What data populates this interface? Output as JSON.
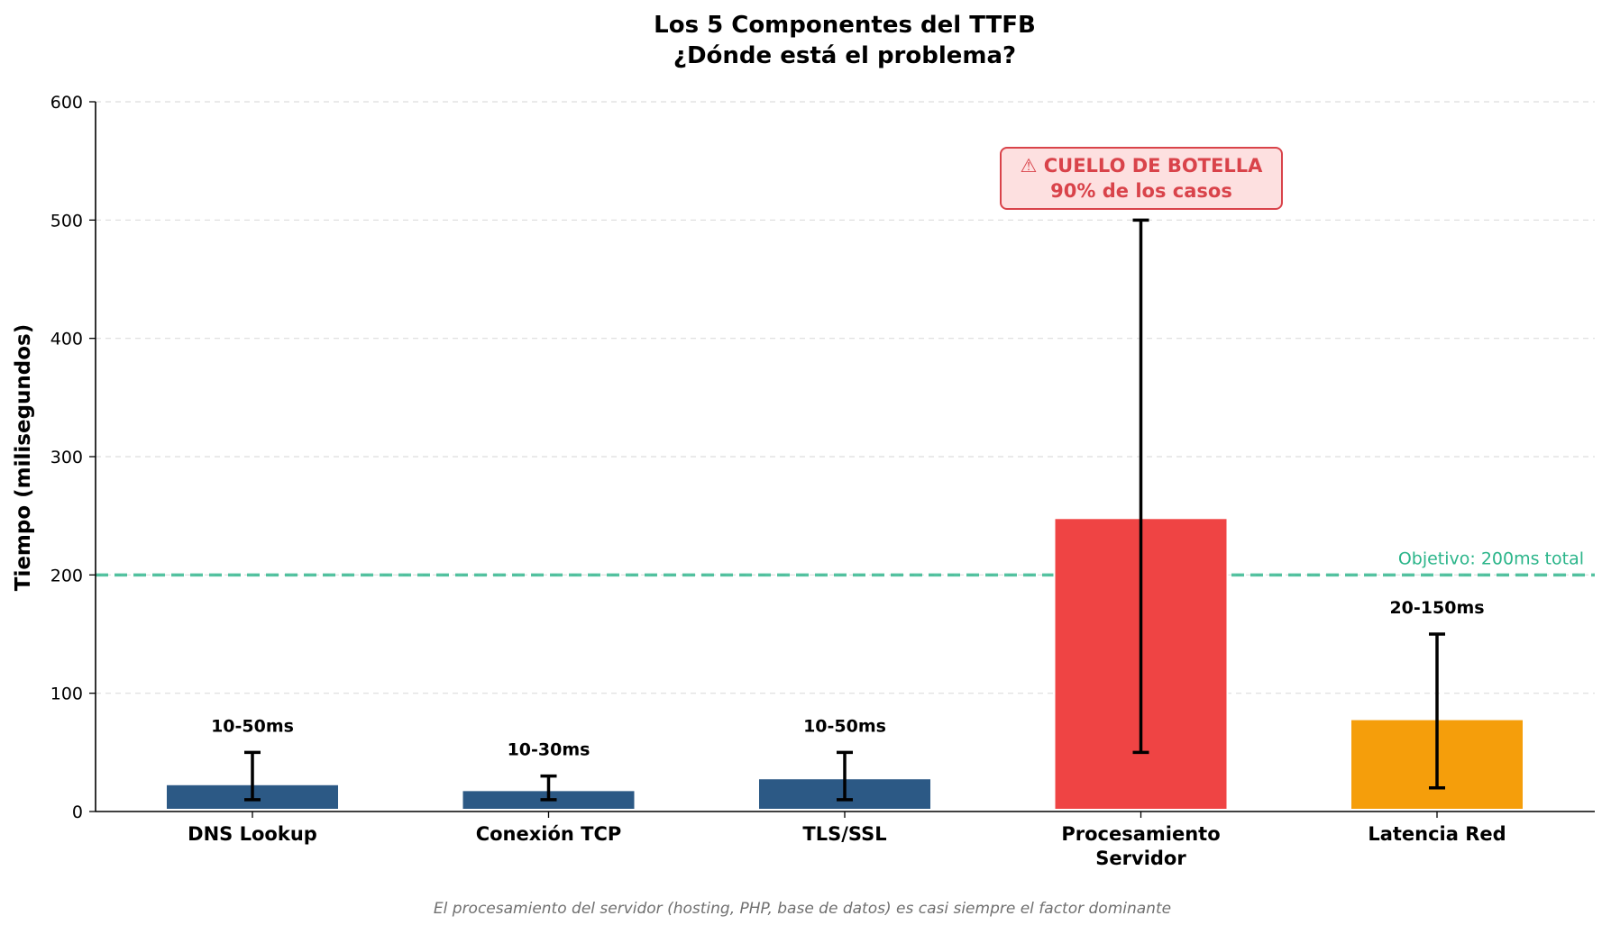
{
  "chart_data": {
    "type": "bar",
    "title_line1": "Los 5 Componentes del TTFB",
    "title_line2": "¿Dónde está el problema?",
    "ylabel": "Tiempo (milisegundos)",
    "xlabel": "",
    "ylim": [
      0,
      600
    ],
    "yticks": [
      0,
      100,
      200,
      300,
      400,
      500,
      600
    ],
    "grid": true,
    "categories": [
      [
        "DNS Lookup"
      ],
      [
        "Conexión TCP"
      ],
      [
        "TLS/SSL"
      ],
      [
        "Procesamiento",
        "Servidor"
      ],
      [
        "Latencia Red"
      ]
    ],
    "values": [
      23,
      18,
      28,
      248,
      78
    ],
    "error_low": [
      10,
      10,
      10,
      50,
      20
    ],
    "error_high": [
      50,
      30,
      50,
      500,
      150
    ],
    "data_labels": [
      "10-50ms",
      "10-30ms",
      "10-50ms",
      "",
      "20-150ms"
    ],
    "colors": [
      "#2c5985",
      "#2c5985",
      "#2c5985",
      "#ef4444",
      "#f59e0b"
    ],
    "target_line": {
      "value": 200,
      "label": "Objetivo: 200ms total",
      "color": "#2bb58a"
    },
    "annotation": {
      "category_index": 3,
      "line1": "⚠ CUELLO DE BOTELLA",
      "line2": "90% de los casos",
      "text_color": "#d9434a",
      "box_fill": "#fde0e0",
      "box_stroke": "#d9434a"
    },
    "footnote": "El procesamiento del servidor (hosting, PHP, base de datos) es casi siempre el factor dominante"
  }
}
